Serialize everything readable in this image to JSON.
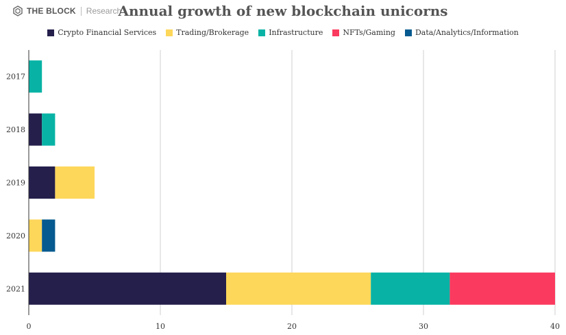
{
  "brand": {
    "name": "THE BLOCK",
    "sub": "Research"
  },
  "chart_data": {
    "type": "bar",
    "orientation": "horizontal",
    "stacked": true,
    "title": "Annual growth of new blockchain unicorns",
    "xlabel": "",
    "ylabel": "",
    "xlim": [
      0,
      40
    ],
    "xticks": [
      0,
      10,
      20,
      30,
      40
    ],
    "categories": [
      "2017",
      "2018",
      "2019",
      "2020",
      "2021"
    ],
    "series": [
      {
        "name": "Crypto Financial Services",
        "color": "#241f4b",
        "values": [
          0,
          1,
          2,
          0,
          15
        ]
      },
      {
        "name": "Trading/Brokerage",
        "color": "#fdd75a",
        "values": [
          0,
          0,
          3,
          1,
          11
        ]
      },
      {
        "name": "Infrastructure",
        "color": "#08b3a5",
        "values": [
          1,
          1,
          0,
          0,
          6
        ]
      },
      {
        "name": "NFTs/Gaming",
        "color": "#fb3a5f",
        "values": [
          0,
          0,
          0,
          0,
          8
        ]
      },
      {
        "name": "Data/Analytics/Information",
        "color": "#055a8f",
        "values": [
          0,
          0,
          0,
          1,
          0
        ]
      }
    ],
    "legend": "top",
    "grid": true
  }
}
